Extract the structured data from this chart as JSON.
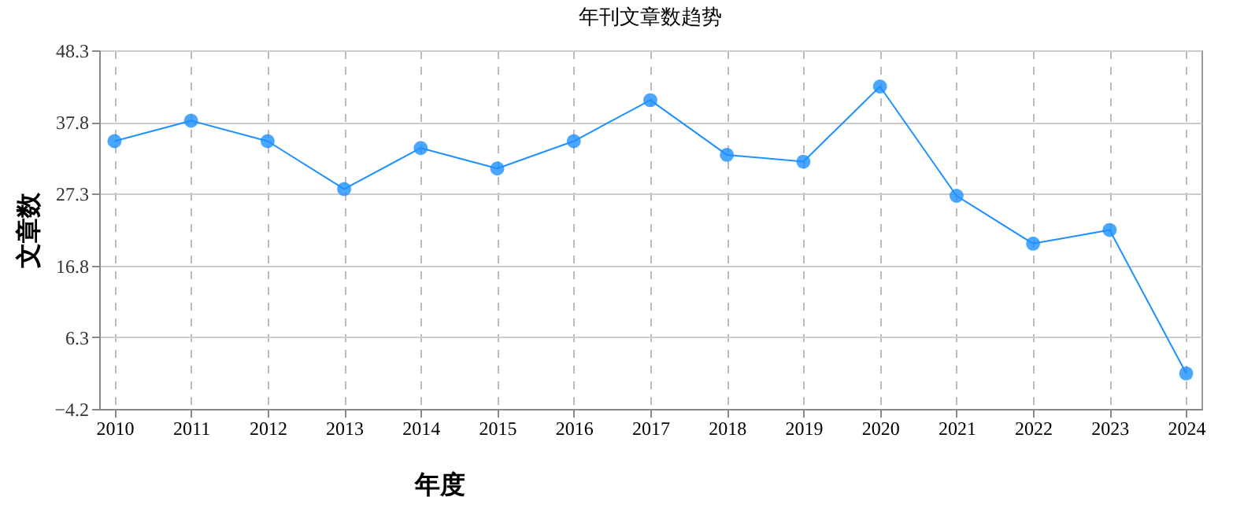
{
  "chart_data": {
    "type": "line",
    "title": "年刊文章数趋势",
    "xlabel": "年度",
    "ylabel": "文章数",
    "categories": [
      "2010",
      "2011",
      "2012",
      "2013",
      "2014",
      "2015",
      "2016",
      "2017",
      "2018",
      "2019",
      "2020",
      "2021",
      "2022",
      "2023",
      "2024"
    ],
    "series": [
      {
        "color": "#1e90ff",
        "values": [
          35,
          38,
          35,
          28,
          34,
          31,
          35,
          41,
          33,
          32,
          43,
          27,
          20,
          22,
          1
        ]
      }
    ],
    "ylim": [
      -4.2,
      48.3
    ],
    "yticks": [
      -4.2,
      6.3,
      16.8,
      27.3,
      37.8,
      48.3
    ],
    "grid": true,
    "marker": "circle",
    "line_style": "solid"
  }
}
